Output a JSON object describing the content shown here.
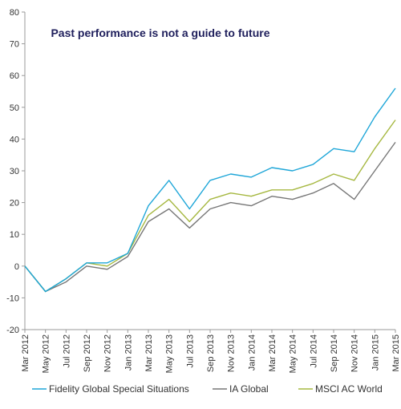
{
  "chart_data": {
    "type": "line",
    "title": "Past performance is not a guide to future",
    "xlabel": "",
    "ylabel": "",
    "ylim": [
      -20,
      80
    ],
    "yticks": [
      -20,
      -10,
      0,
      10,
      20,
      30,
      40,
      50,
      60,
      70,
      80
    ],
    "grid": false,
    "legend_position": "bottom",
    "categories": [
      "Mar 2012",
      "May 2012",
      "Jul 2012",
      "Sep 2012",
      "Nov 2012",
      "Jan 2013",
      "Mar 2013",
      "May 2013",
      "Jul 2013",
      "Sep 2013",
      "Nov 2013",
      "Jan 2014",
      "Mar 2014",
      "May 2014",
      "Jul 2014",
      "Sep 2014",
      "Nov 2014",
      "Jan 2015",
      "Mar 2015"
    ],
    "series": [
      {
        "name": "Fidelity Global Special Situations",
        "color": "#1ea6d8",
        "values": [
          0,
          -8,
          -4,
          1,
          1,
          4,
          19,
          27,
          18,
          27,
          29,
          28,
          31,
          30,
          32,
          37,
          36,
          47,
          56
        ]
      },
      {
        "name": "IA Global",
        "color": "#777777",
        "values": [
          0,
          -8,
          -5,
          0,
          -1,
          3,
          14,
          18,
          12,
          18,
          20,
          19,
          22,
          21,
          23,
          26,
          21,
          30,
          39
        ]
      },
      {
        "name": "MSCI AC World",
        "color": "#a6b841",
        "values": [
          0,
          -8,
          -4,
          1,
          0,
          4,
          16,
          21,
          14,
          21,
          23,
          22,
          24,
          24,
          26,
          29,
          27,
          37,
          46
        ]
      }
    ]
  }
}
